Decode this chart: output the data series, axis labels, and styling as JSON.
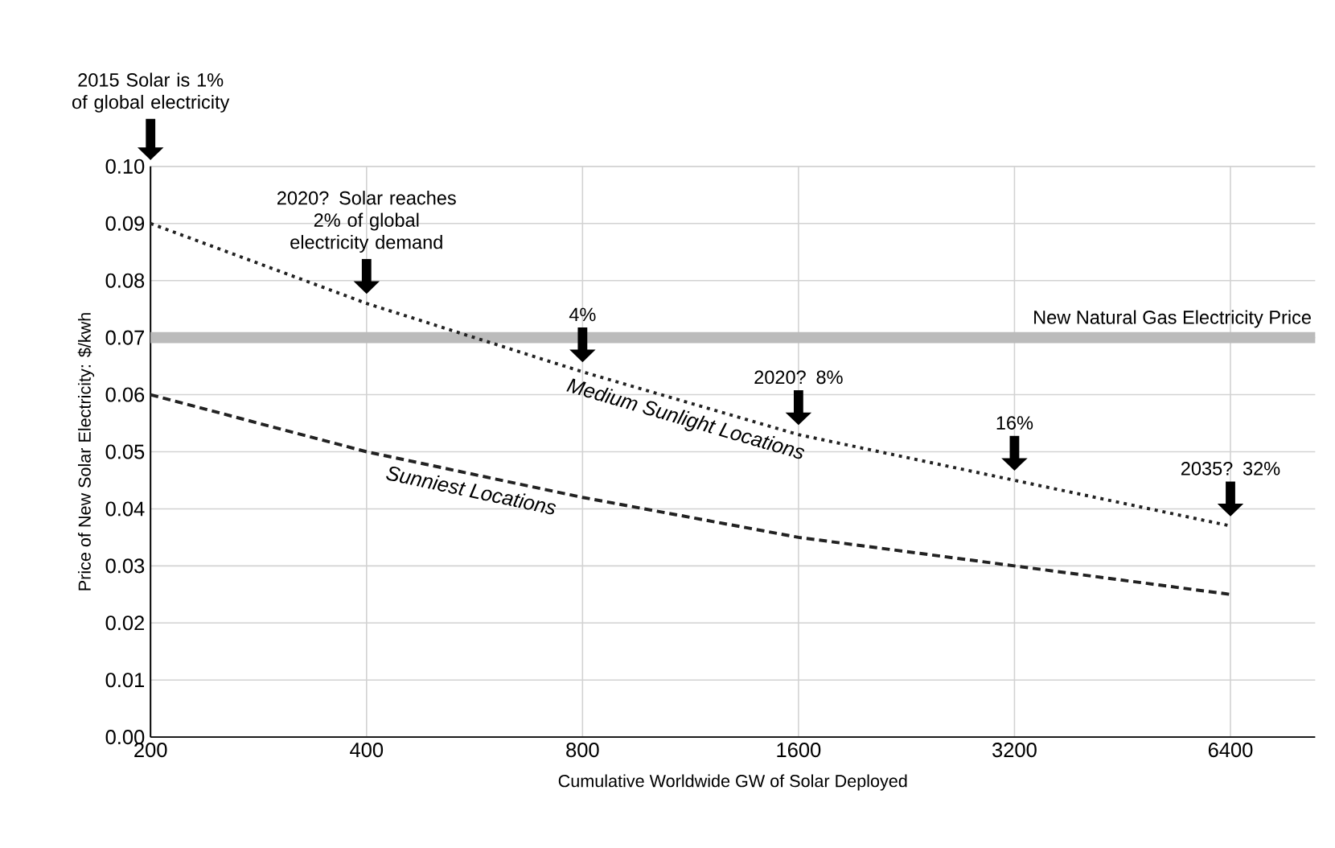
{
  "chart_data": {
    "type": "line",
    "xlabel": "Cumulative Worldwide GW of Solar Deployed",
    "ylabel": "Price of New Solar Electricity: $/kwh",
    "x": [
      200,
      400,
      800,
      1600,
      3200,
      6400
    ],
    "series": [
      {
        "name": "Medium Sunlight Locations",
        "color": "#222222",
        "line_style": "dotted",
        "values": [
          0.09,
          0.076,
          0.064,
          0.053,
          0.045,
          0.037
        ]
      },
      {
        "name": "Sunniest Locations",
        "color": "#222222",
        "line_style": "dashed",
        "values": [
          0.06,
          0.05,
          0.042,
          0.035,
          0.03,
          0.025
        ]
      }
    ],
    "log": "x",
    "xlim": [
      200,
      8400
    ],
    "xticks": [
      200,
      400,
      800,
      1600,
      3200,
      6400
    ],
    "ylim": [
      0,
      0.1
    ],
    "yticks": [
      {
        "value": 0,
        "label": "0.00"
      },
      {
        "value": 0.01,
        "label": "0.01"
      },
      {
        "value": 0.02,
        "label": "0.02"
      },
      {
        "value": 0.03,
        "label": "0.03"
      },
      {
        "value": 0.04,
        "label": "0.04"
      },
      {
        "value": 0.05,
        "label": "0.05"
      },
      {
        "value": 0.06,
        "label": "0.06"
      },
      {
        "value": 0.07,
        "label": "0.07"
      },
      {
        "value": 0.08,
        "label": "0.08"
      },
      {
        "value": 0.09,
        "label": "0.09"
      },
      {
        "value": 0.1,
        "label": "0.10"
      }
    ],
    "grid": true,
    "ref_lines": [
      {
        "axis": "y",
        "value": 0.07,
        "label": "New Natural Gas Electricity Price",
        "color": "#bbbbbb"
      }
    ],
    "annotations": [
      "2015 Solar is 1% of global electricity",
      {
        "text": "2020? Solar reaches 2% of global electricity demand",
        "x": 400,
        "y": 0.076
      },
      {
        "text": "4%",
        "x": 800,
        "y": 0.064
      },
      {
        "text": "2020? 8%",
        "x": 1600,
        "y": 0.053
      },
      {
        "text": "16%",
        "x": 3200,
        "y": 0.045
      },
      {
        "text": "2035? 32%",
        "x": 6400,
        "y": 0.037
      }
    ]
  }
}
